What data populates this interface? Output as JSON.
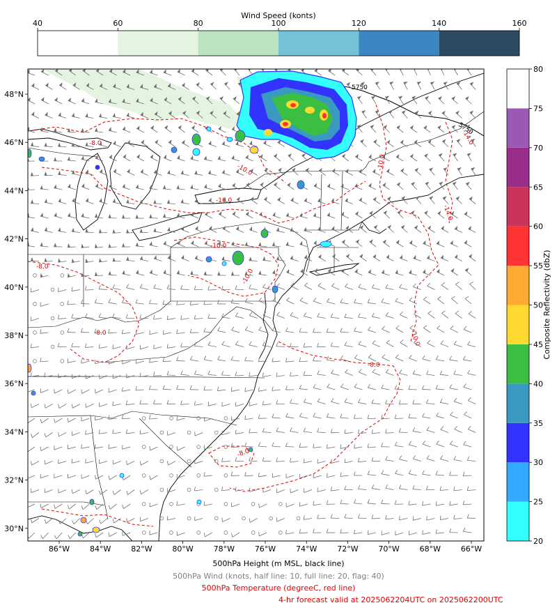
{
  "windbar": {
    "title": "Wind Speed (konts)",
    "ticks": [
      "40",
      "60",
      "80",
      "100",
      "120",
      "140",
      "160"
    ],
    "colors": [
      "#ffffff",
      "#e5f4e0",
      "#bae4bf",
      "#74c1d8",
      "#3b87c2",
      "#2e4a62"
    ]
  },
  "refbar": {
    "label": "Composite Reflectivity (dbZ)",
    "ticks": [
      "20",
      "25",
      "30",
      "35",
      "40",
      "45",
      "50",
      "55",
      "60",
      "65",
      "70",
      "75",
      "80"
    ],
    "colors": [
      "#33ffff",
      "#33aaff",
      "#3333ff",
      "#3a99c0",
      "#3abf42",
      "#ffd92f",
      "#ffaa33",
      "#ff3333",
      "#cc3359",
      "#992e8a",
      "#9b59b6",
      "#ffffff"
    ]
  },
  "map": {
    "lon_labels": [
      "86°W",
      "84°W",
      "82°W",
      "80°W",
      "78°W",
      "76°W",
      "74°W",
      "72°W",
      "70°W",
      "68°W",
      "66°W"
    ],
    "lat_labels": [
      "48°N",
      "46°N",
      "44°N",
      "42°N",
      "40°N",
      "38°N",
      "36°N",
      "34°N",
      "32°N",
      "30°N"
    ],
    "height_contour_labels": [
      "5750",
      "5750"
    ],
    "temp_contour_labels": [
      "-8.0",
      "-10.0",
      "-10.0",
      "-10.0",
      "-10.0",
      "-8.0",
      "-8.0",
      "-10.0",
      "-8.0",
      "-8.0",
      "-10.0",
      "-14.0",
      "-14.0"
    ]
  },
  "captions": {
    "height": "500hPa Height (m MSL, black line)",
    "wind": "500hPa Wind (knots, half line: 10, full line: 20, flag: 40)",
    "temp": "500hPa Temperature (degreeC, red line)",
    "valid": "4-hr forecast valid at 2025062204UTC on 2025062200UTC"
  },
  "colors": {
    "temp_line": "#e00000",
    "height_line": "#000000",
    "barb": "#6e6e6e",
    "border": "#000000"
  }
}
